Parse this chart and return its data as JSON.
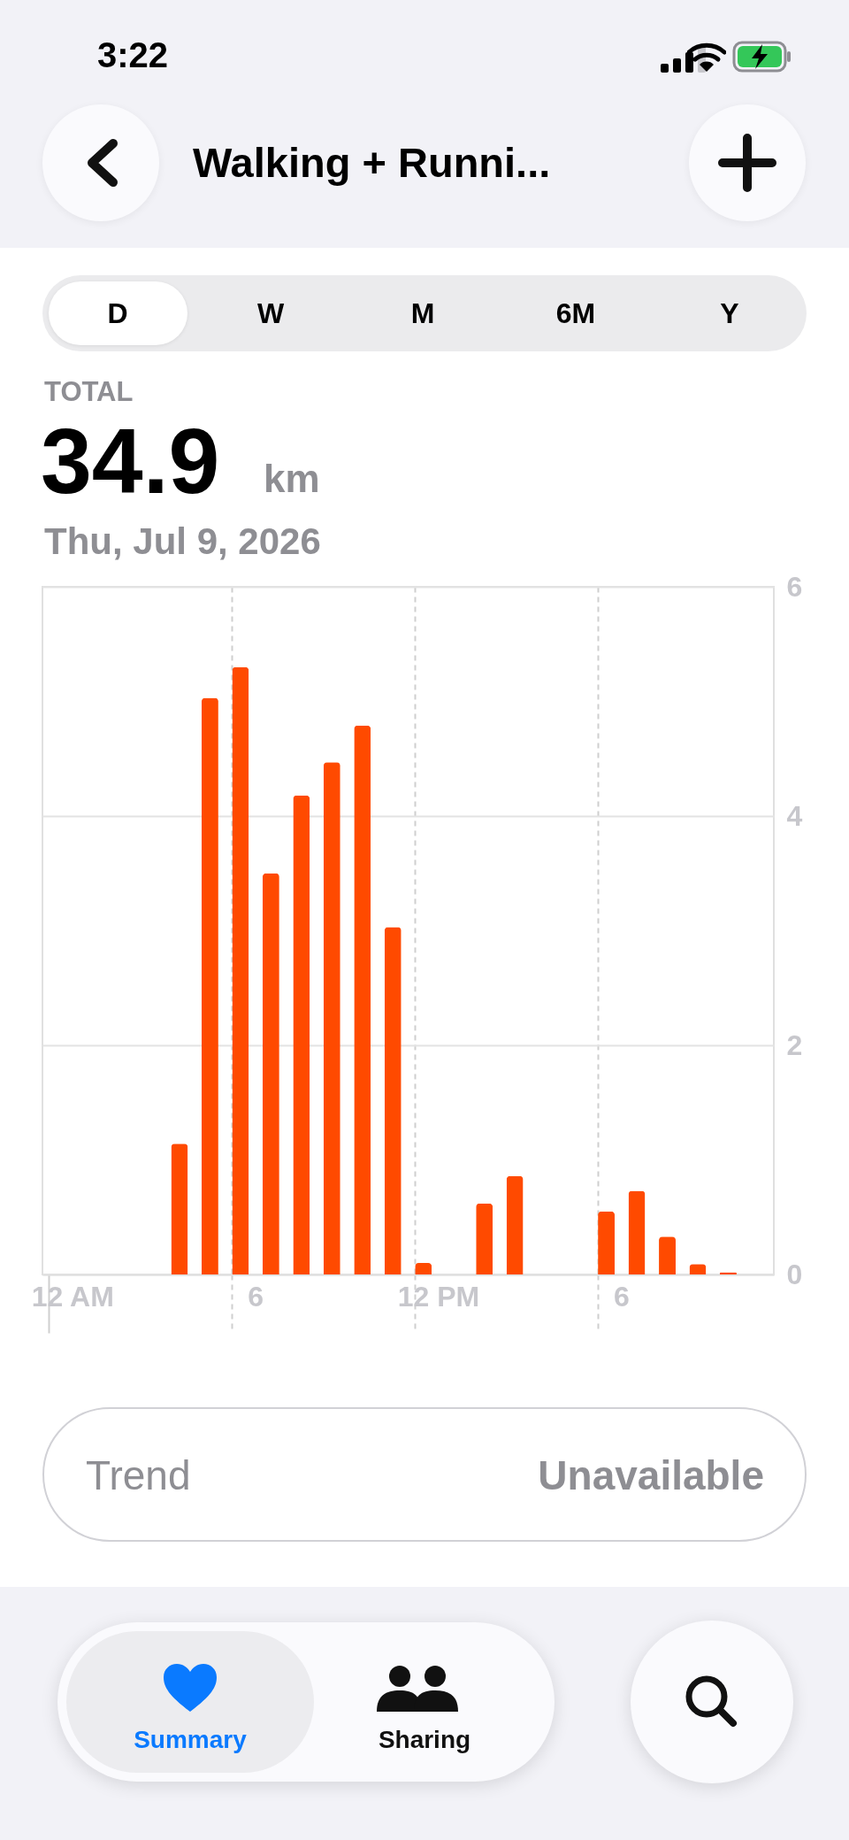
{
  "chart_data": {
    "type": "bar",
    "title": "Walking + Runni...",
    "categories": [
      "12 AM",
      null,
      null,
      null,
      null,
      null,
      "6",
      null,
      null,
      null,
      null,
      null,
      "12 PM",
      null,
      null,
      null,
      null,
      null,
      "6",
      null,
      null,
      null,
      null,
      null
    ],
    "values": [
      null,
      null,
      null,
      null,
      1.14,
      5.03,
      5.3,
      3.5,
      4.18,
      4.47,
      4.79,
      3.03,
      0.1,
      null,
      0.62,
      0.86,
      null,
      null,
      0.55,
      0.73,
      0.33,
      0.09,
      0.02,
      null
    ],
    "color": "#ff4a00",
    "ylim": [
      0,
      6
    ],
    "yticks": [
      0,
      2,
      4,
      6
    ],
    "grid": true,
    "annotations": [
      "3:22",
      "D",
      "W",
      "M",
      "6M",
      "Y",
      "TOTAL",
      "34.9",
      "km",
      "Thu, Jul 9, 2026",
      "Trend",
      "Unavailable",
      "Summary",
      "Sharing"
    ]
  }
}
